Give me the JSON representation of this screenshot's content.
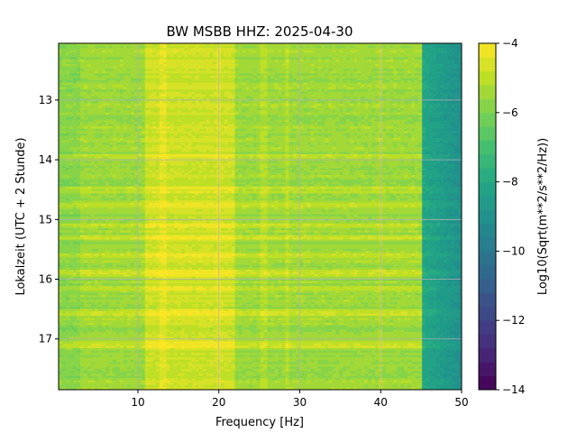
{
  "chart_data": {
    "type": "heatmap",
    "title": "BW MSBB  HHZ: 2025-04-30",
    "xlabel": "Frequency [Hz]",
    "ylabel": "Lokalzeit (UTC + 2 Stunde)",
    "xlim": [
      0.2,
      50
    ],
    "ylim": [
      17.85,
      12.05
    ],
    "x_ticks": [
      10,
      20,
      30,
      40,
      50
    ],
    "y_ticks": [
      13,
      14,
      15,
      16,
      17
    ],
    "grid": true,
    "colormap": "viridis",
    "colorbar": {
      "label": "Log10(Sqrt(m**2/s**2/Hz))",
      "range": [
        -14,
        -4
      ],
      "ticks": [
        -14,
        -12,
        -10,
        -8,
        -6,
        -4
      ],
      "levels": 25
    },
    "typical_values": {
      "background": -5.5,
      "peak_band_11_22_hz": -4.8,
      "drop_above_45_hz": -8.0,
      "edge_50_hz": -9.0
    },
    "spectral_lines_hz": [
      13,
      20,
      25.5,
      28.5,
      40
    ],
    "bright_rows_hour": [
      13.95,
      14.5,
      14.75,
      15.1,
      15.3,
      15.6,
      15.9,
      16.15,
      16.55,
      17.1
    ]
  }
}
